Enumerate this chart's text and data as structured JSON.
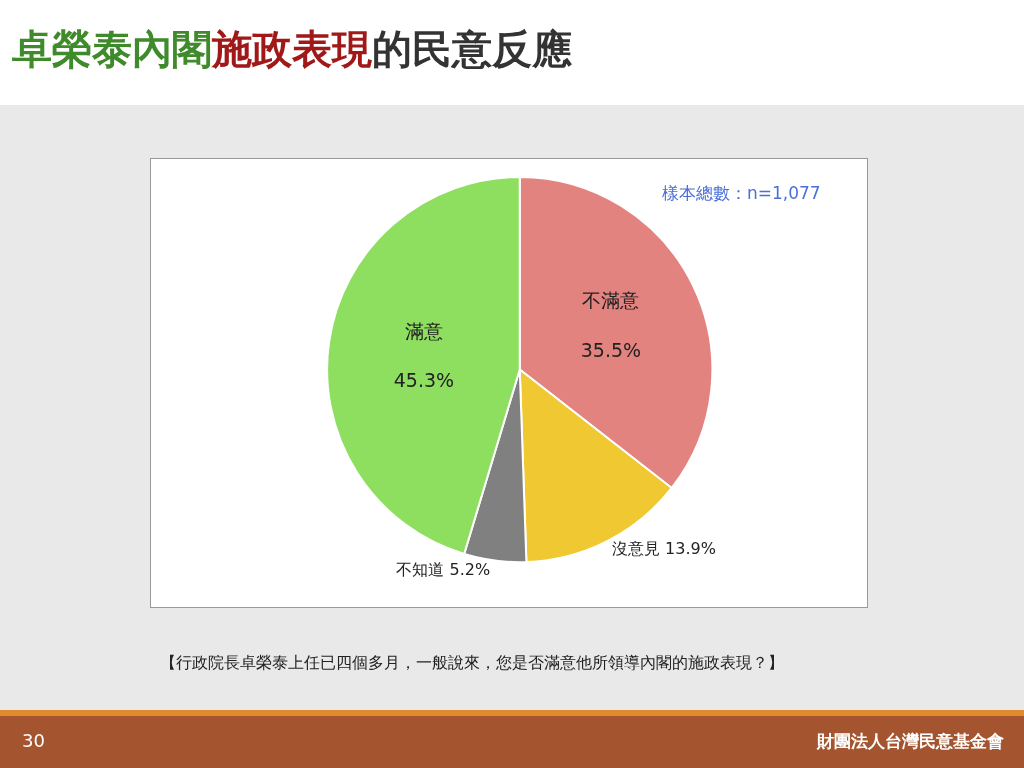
{
  "chart_data": {
    "type": "pie",
    "title": "卓榮泰內閣施政表現的民意反應",
    "categories": [
      "不滿意",
      "沒意見",
      "不知道",
      "滿意"
    ],
    "values": [
      35.5,
      13.9,
      5.2,
      45.3
    ],
    "value_labels": [
      "35.5%",
      "13.9%",
      "5.2%",
      "45.3%"
    ],
    "colors": [
      "#e3837f",
      "#f0c832",
      "#808080",
      "#8ede60"
    ],
    "legend": false,
    "annotations": [
      "樣本總數：n=1,077",
      "【行政院長卓榮泰上任已四個多月，一般說來，您是否滿意他所領導內閣的施政表現？】",
      "30",
      "財團法人台灣民意基金會"
    ]
  }
}
